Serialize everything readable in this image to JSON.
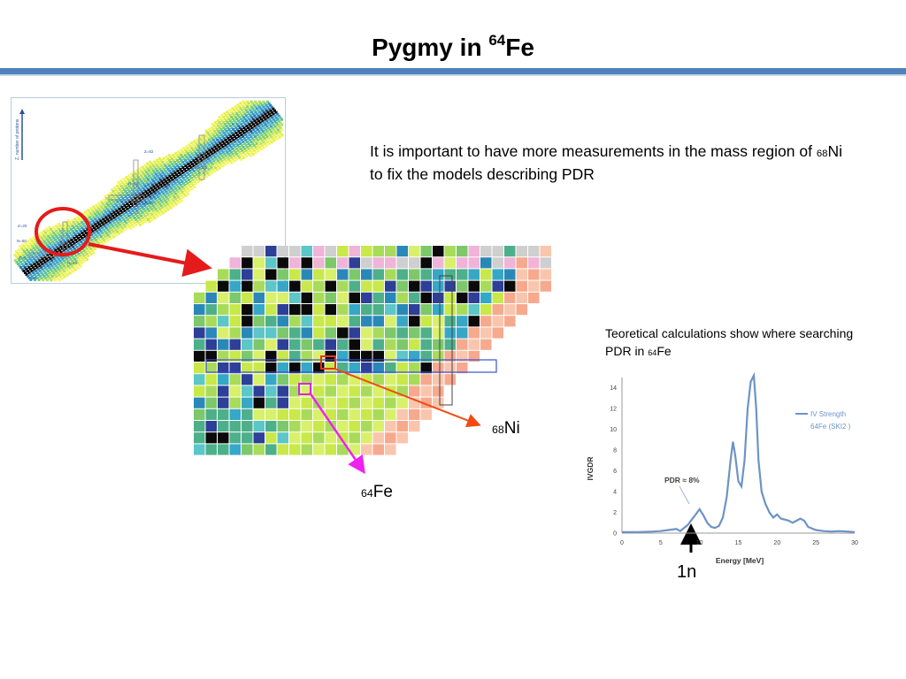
{
  "slide": {
    "title_main": "Pygmy in ",
    "title_sup": "64",
    "title_end": "Fe",
    "description": {
      "part1": "It is important to have more measurements in the mass region of ",
      "sup": "68",
      "part2": "Ni to fix the models describing PDR"
    },
    "note": {
      "part1": "Teoretical calculations show where searching PDR in ",
      "sup": "64",
      "part2": "Fe"
    },
    "label_ni": {
      "sup": "68",
      "text": "Ni"
    },
    "label_fe": {
      "sup": "64",
      "text": "Fe"
    },
    "label_1n": "1n"
  },
  "nuclide_chart": {
    "axis_label": "Z, number of protons",
    "labels": [
      "Z=82",
      "N=126",
      "Z=50",
      "N=82",
      "Z=28",
      "N=50",
      "Z=20",
      "N=28",
      "Z=8",
      "N=20",
      "N=8"
    ]
  },
  "colors": {
    "accent_bar": "#4f81bd",
    "circle": "#e51b1b",
    "arrow_ni": "#f04a12",
    "arrow_fe": "#ee22ee",
    "chart_line": "#6d93c6"
  },
  "chart_data": {
    "type": "line",
    "xlabel": "Energy [MeV]",
    "ylabel": "IVGDR",
    "xlim": [
      0,
      30
    ],
    "ylim": [
      0,
      15
    ],
    "xticks": [
      0,
      5,
      10,
      15,
      20,
      25,
      30
    ],
    "yticks": [
      0,
      2,
      4,
      6,
      8,
      10,
      12,
      14
    ],
    "legend": [
      "IV Strength",
      "64Fe (SKI2 )"
    ],
    "legend_position": "top-right",
    "annotation": "PDR ≈ 8%",
    "series": [
      {
        "x": [
          0,
          2,
          4,
          5,
          6,
          7,
          7.5,
          8,
          8.5,
          9,
          9.5,
          10,
          10.5,
          11,
          11.5,
          12,
          12.5,
          13,
          13.5,
          14,
          14.3,
          14.6,
          15,
          15.4,
          15.8,
          16.2,
          16.6,
          17,
          17.3,
          17.6,
          18,
          18.5,
          19,
          19.5,
          20,
          20.5,
          21,
          21.5,
          22,
          22.5,
          23,
          23.5,
          24,
          25,
          26,
          27,
          28,
          29,
          30
        ],
        "y": [
          0.1,
          0.1,
          0.15,
          0.2,
          0.3,
          0.4,
          0.2,
          0.5,
          0.8,
          1.3,
          1.8,
          2.3,
          1.7,
          1.0,
          0.6,
          0.5,
          0.7,
          1.5,
          3.5,
          7.0,
          8.8,
          7.5,
          5.0,
          4.5,
          7.0,
          12.0,
          14.6,
          15.2,
          12.0,
          7.0,
          4.0,
          2.8,
          2.0,
          1.5,
          1.8,
          1.4,
          1.3,
          1.2,
          1.0,
          1.2,
          1.4,
          1.2,
          0.6,
          0.3,
          0.2,
          0.15,
          0.2,
          0.15,
          0.1
        ]
      }
    ]
  }
}
